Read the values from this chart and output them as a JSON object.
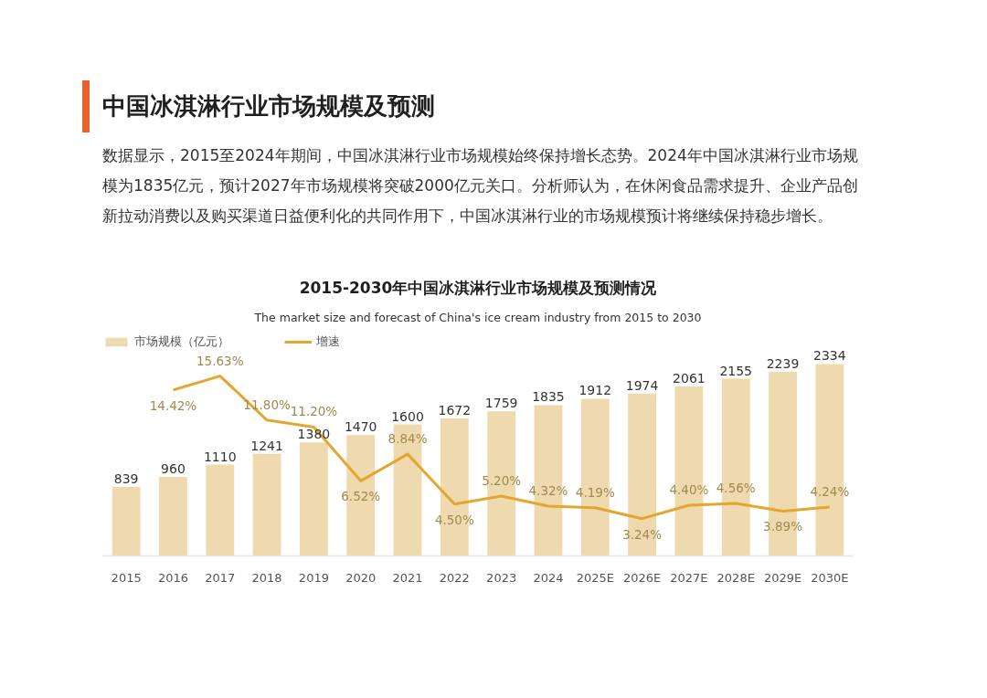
{
  "chart_data": {
    "type": "bar",
    "title": "2015-2030年中国冰淇淋行业市场规模及预测情况",
    "subtitle": "The market size and forecast of China's ice cream industry from 2015 to 2030",
    "annotations": [
      "中国冰淇淋行业市场规模及预测",
      "数据显示，2015至2024年期间，中国冰淇淋行业市场规模始终保持增长态势。2024年中国冰淇淋行业市场规模为1835亿元，预计2027年市场规模将突破2000亿元关口。分析师认为，在休闲食品需求提升、企业产品创新拉动消费以及购买渠道日益便利化的共同作用下，中国冰淇淋行业的市场规模预计将继续保持稳步增长。"
    ],
    "categories": [
      "2015",
      "2016",
      "2017",
      "2018",
      "2019",
      "2020",
      "2021",
      "2022",
      "2023",
      "2024",
      "2025E",
      "2026E",
      "2027E",
      "2028E",
      "2029E",
      "2030E"
    ],
    "series": [
      {
        "name": "市场规模（亿元）",
        "color": "#efd9ae",
        "values": [
          839,
          960,
          1110,
          1241,
          1380,
          1470,
          1600,
          1672,
          1759,
          1835,
          1912,
          1974,
          2061,
          2155,
          2239,
          2334
        ],
        "value_labels": [
          "839",
          "960",
          "1110",
          "1241",
          "1380",
          "1470",
          "1600",
          "1672",
          "1759",
          "1835",
          "1912",
          "1974",
          "2061",
          "2155",
          "2239",
          "2334"
        ]
      },
      {
        "name": "增速",
        "type": "line",
        "axis": "y2",
        "color": "#e3a72f",
        "values": [
          null,
          14.42,
          15.63,
          11.8,
          11.2,
          6.52,
          8.84,
          4.5,
          5.2,
          4.32,
          4.19,
          3.24,
          4.4,
          4.56,
          3.89,
          4.24
        ],
        "value_labels": [
          null,
          "14.42%",
          "15.63%",
          "11.80%",
          "11.20%",
          "6.52%",
          "8.84%",
          "4.50%",
          "5.20%",
          "4.32%",
          "4.19%",
          "3.24%",
          "4.40%",
          "4.56%",
          "3.89%",
          "4.24%"
        ]
      }
    ],
    "legend": "top left",
    "tick_labels": "x"
  }
}
